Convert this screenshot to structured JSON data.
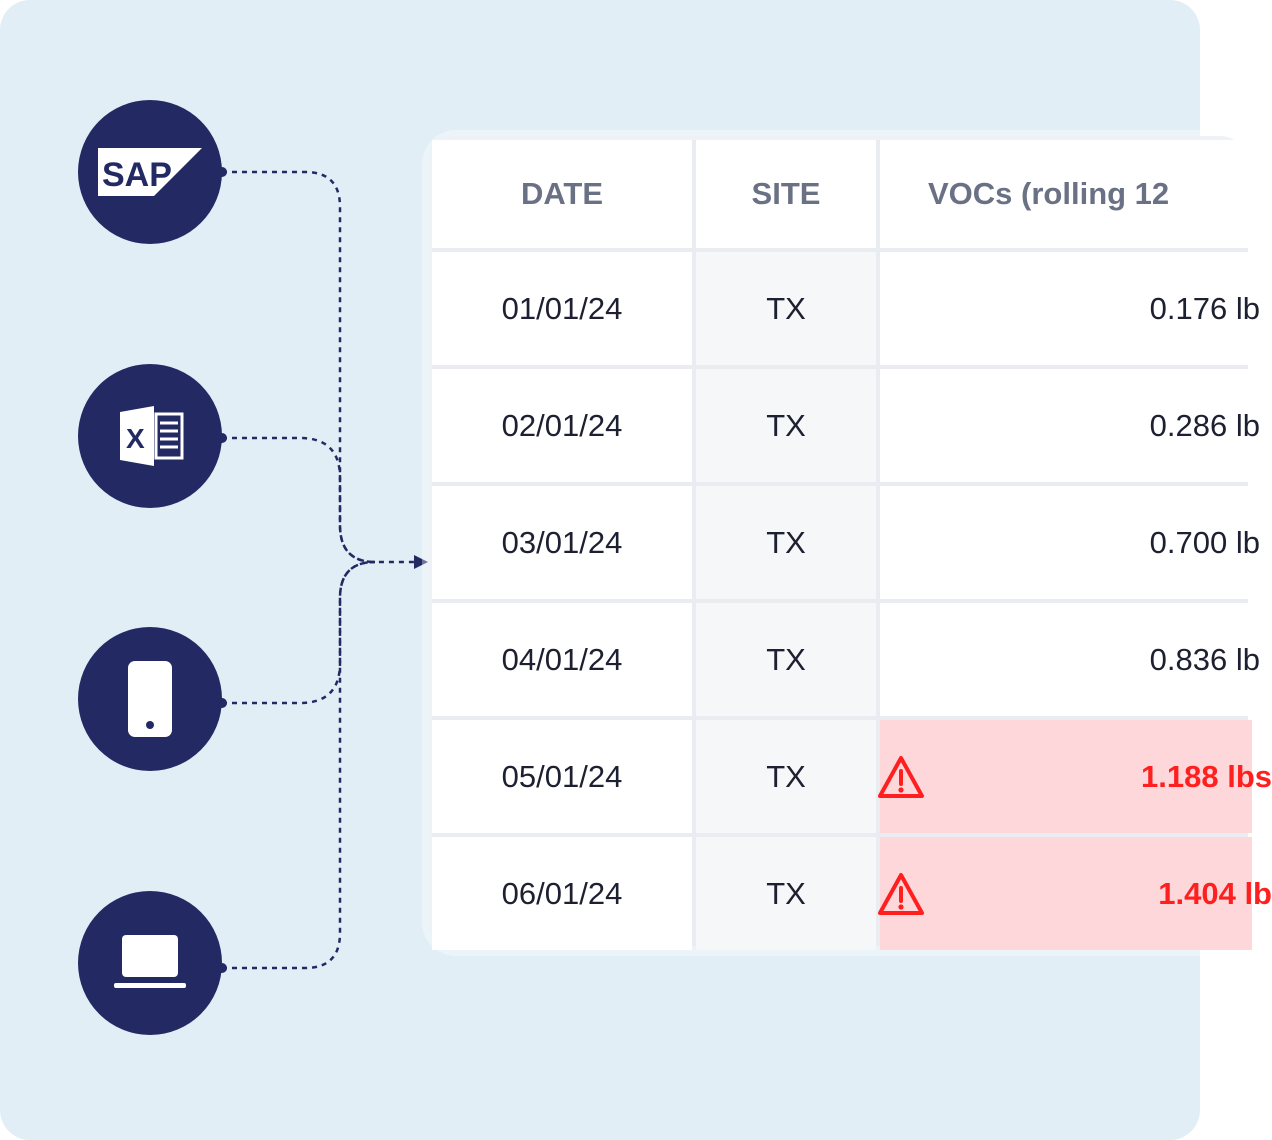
{
  "sources": [
    {
      "name": "sap",
      "label": "SAP"
    },
    {
      "name": "excel",
      "label": "X"
    },
    {
      "name": "mobile",
      "label": ""
    },
    {
      "name": "laptop",
      "label": ""
    }
  ],
  "table": {
    "headers": [
      "DATE",
      "SITE",
      "VOCs (rolling 12"
    ],
    "rows": [
      {
        "date": "01/01/24",
        "site": "TX",
        "voc": "0.176 lb",
        "alert": false
      },
      {
        "date": "02/01/24",
        "site": "TX",
        "voc": "0.286 lb",
        "alert": false
      },
      {
        "date": "03/01/24",
        "site": "TX",
        "voc": "0.700 lb",
        "alert": false
      },
      {
        "date": "04/01/24",
        "site": "TX",
        "voc": "0.836 lb",
        "alert": false
      },
      {
        "date": "05/01/24",
        "site": "TX",
        "voc": "1.188 lbs",
        "alert": true
      },
      {
        "date": "06/01/24",
        "site": "TX",
        "voc": "1.404 lb",
        "alert": true
      }
    ]
  },
  "colors": {
    "background": "#e1eef6",
    "icon_circle": "#232a63",
    "alert_fill": "#fdd7d9",
    "alert_text": "#ff1f1f"
  }
}
